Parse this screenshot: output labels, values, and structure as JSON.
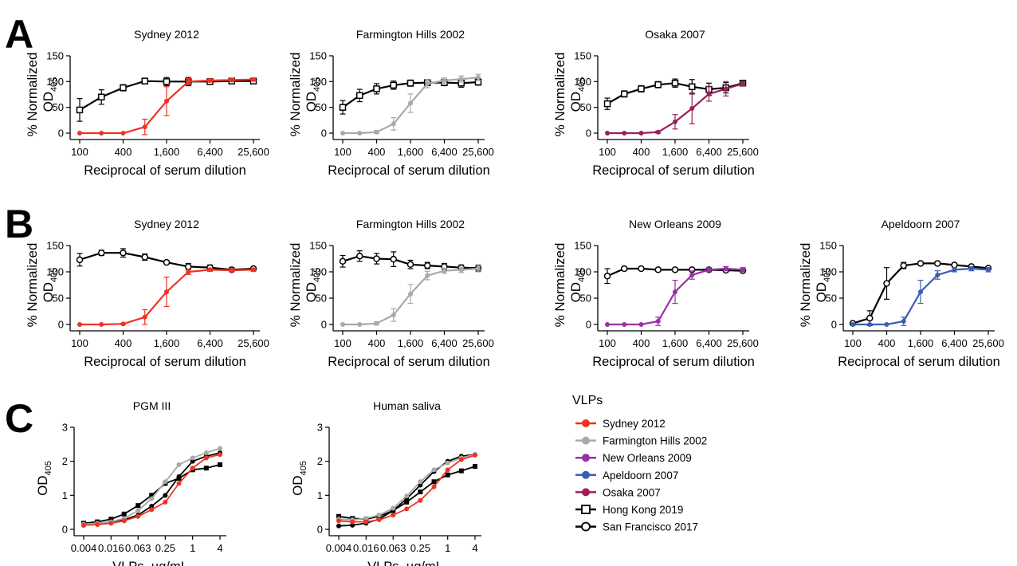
{
  "panel_letters": [
    "A",
    "B",
    "C"
  ],
  "colors": {
    "Sydney 2012": "#ee3324",
    "Farmington Hills 2002": "#a9a9a9",
    "New Orleans 2009": "#9b2fa6",
    "Apeldoorn 2007": "#3d5db3",
    "Osaka 2007": "#9a1f5a",
    "Hong Kong 2019": "#000000",
    "San Francisco 2017": "#000000"
  },
  "axis_text": {
    "od_ylabel_line1": "% Normalized",
    "od_ylabel_line2_main": "OD",
    "od_ylabel_line2_sub": "405",
    "dilution_xlabel": "Reciprocal of serum dilution",
    "vlp_xlabel": "VLPs, µg/mL"
  },
  "legend": {
    "title": "VLPs",
    "items": [
      {
        "label": "Sydney 2012",
        "marker": "filled-circle",
        "color": "#ee3324"
      },
      {
        "label": "Farmington Hills 2002",
        "marker": "filled-circle",
        "color": "#a9a9a9"
      },
      {
        "label": "New Orleans 2009",
        "marker": "filled-circle",
        "color": "#9b2fa6"
      },
      {
        "label": "Apeldoorn 2007",
        "marker": "filled-circle",
        "color": "#3d5db3"
      },
      {
        "label": "Osaka 2007",
        "marker": "filled-circle",
        "color": "#9a1f5a"
      },
      {
        "label": "Hong Kong 2019",
        "marker": "open-square",
        "color": "#000000"
      },
      {
        "label": "San Francisco 2017",
        "marker": "open-circle",
        "color": "#000000"
      }
    ]
  },
  "chart_data": [
    {
      "panel": "A",
      "type": "line",
      "title": "Sydney 2012",
      "xlabel": "Reciprocal of serum dilution",
      "ylabel": "% Normalized OD405",
      "x_scale": "log",
      "x_ticks": [
        "100",
        "400",
        "1,600",
        "6,400",
        "25,600"
      ],
      "y_ticks": [
        "0",
        "50",
        "100",
        "150"
      ],
      "ylim": [
        0,
        150
      ],
      "x": [
        100,
        200,
        400,
        800,
        1600,
        3200,
        6400,
        12800,
        25600
      ],
      "series": [
        {
          "name": "Hong Kong 2019",
          "marker": "open-square",
          "values": [
            45,
            70,
            88,
            101,
            100,
            100,
            100,
            101,
            101
          ],
          "errors": [
            22,
            14,
            6,
            4,
            8,
            8,
            4,
            5,
            5
          ]
        },
        {
          "name": "Sydney 2012",
          "marker": "filled-circle",
          "values": [
            0,
            0,
            0,
            12,
            62,
            100,
            102,
            103,
            104
          ],
          "errors": [
            0,
            0,
            0,
            15,
            28,
            6,
            3,
            3,
            3
          ]
        }
      ]
    },
    {
      "panel": "A",
      "type": "line",
      "title": "Farmington Hills 2002",
      "xlabel": "Reciprocal of serum dilution",
      "ylabel": "% Normalized OD405",
      "x_scale": "log",
      "x_ticks": [
        "100",
        "400",
        "1,600",
        "6,400",
        "25,600"
      ],
      "y_ticks": [
        "0",
        "50",
        "100",
        "150"
      ],
      "ylim": [
        0,
        150
      ],
      "x": [
        100,
        200,
        400,
        800,
        1600,
        3200,
        6400,
        12800,
        25600
      ],
      "series": [
        {
          "name": "Hong Kong 2019",
          "marker": "open-square",
          "values": [
            50,
            73,
            86,
            93,
            97,
            98,
            98,
            97,
            99
          ],
          "errors": [
            13,
            12,
            10,
            8,
            6,
            6,
            6,
            8,
            6
          ]
        },
        {
          "name": "Farmington Hills 2002",
          "marker": "filled-circle",
          "values": [
            0,
            0,
            2,
            18,
            58,
            96,
            102,
            105,
            108
          ],
          "errors": [
            0,
            0,
            3,
            12,
            18,
            8,
            5,
            6,
            6
          ]
        }
      ]
    },
    {
      "panel": "A",
      "type": "line",
      "title": "Osaka 2007",
      "xlabel": "Reciprocal of serum dilution",
      "ylabel": "% Normalized OD405",
      "x_scale": "log",
      "x_ticks": [
        "100",
        "400",
        "1,600",
        "6,400",
        "25,600"
      ],
      "y_ticks": [
        "0",
        "50",
        "100",
        "150"
      ],
      "ylim": [
        0,
        150
      ],
      "x": [
        100,
        200,
        400,
        800,
        1600,
        3200,
        6400,
        12800,
        25600
      ],
      "series": [
        {
          "name": "Hong Kong 2019",
          "marker": "open-square",
          "values": [
            57,
            76,
            86,
            94,
            97,
            90,
            85,
            88,
            97
          ],
          "errors": [
            11,
            6,
            6,
            6,
            8,
            14,
            12,
            10,
            5
          ]
        },
        {
          "name": "Osaka 2007",
          "marker": "filled-circle",
          "values": [
            0,
            0,
            0,
            2,
            22,
            48,
            76,
            86,
            96
          ],
          "errors": [
            0,
            0,
            0,
            2,
            14,
            30,
            14,
            14,
            4
          ]
        }
      ]
    },
    {
      "panel": "B",
      "type": "line",
      "title": "Sydney 2012",
      "xlabel": "Reciprocal of serum dilution",
      "ylabel": "% Normalized OD405",
      "x_scale": "log",
      "x_ticks": [
        "100",
        "400",
        "1,600",
        "6,400",
        "25,600"
      ],
      "y_ticks": [
        "0",
        "50",
        "100",
        "150"
      ],
      "ylim": [
        0,
        150
      ],
      "x": [
        100,
        200,
        400,
        800,
        1600,
        3200,
        6400,
        12800,
        25600
      ],
      "series": [
        {
          "name": "San Francisco 2017",
          "marker": "open-circle",
          "values": [
            123,
            136,
            136,
            128,
            118,
            110,
            108,
            104,
            106
          ],
          "errors": [
            12,
            5,
            8,
            6,
            3,
            6,
            5,
            4,
            3
          ]
        },
        {
          "name": "Sydney 2012",
          "marker": "filled-circle",
          "values": [
            0,
            0,
            1,
            14,
            62,
            100,
            104,
            103,
            104
          ],
          "errors": [
            0,
            0,
            1,
            14,
            28,
            5,
            3,
            3,
            3
          ]
        }
      ]
    },
    {
      "panel": "B",
      "type": "line",
      "title": "Farmington Hills 2002",
      "xlabel": "Reciprocal of serum dilution",
      "ylabel": "% Normalized OD405",
      "x_scale": "log",
      "x_ticks": [
        "100",
        "400",
        "1,600",
        "6,400",
        "25,600"
      ],
      "y_ticks": [
        "0",
        "50",
        "100",
        "150"
      ],
      "ylim": [
        0,
        150
      ],
      "x": [
        100,
        200,
        400,
        800,
        1600,
        3200,
        6400,
        12800,
        25600
      ],
      "series": [
        {
          "name": "San Francisco 2017",
          "marker": "open-circle",
          "values": [
            120,
            130,
            125,
            124,
            114,
            112,
            110,
            108,
            107
          ],
          "errors": [
            11,
            10,
            10,
            14,
            8,
            6,
            6,
            5,
            6
          ]
        },
        {
          "name": "Farmington Hills 2002",
          "marker": "filled-circle",
          "values": [
            0,
            0,
            2,
            18,
            58,
            93,
            102,
            104,
            106
          ],
          "errors": [
            0,
            0,
            3,
            12,
            18,
            8,
            5,
            5,
            6
          ]
        }
      ]
    },
    {
      "panel": "B",
      "type": "line",
      "title": "New Orleans 2009",
      "xlabel": "Reciprocal of serum dilution",
      "ylabel": "% Normalized OD405",
      "x_scale": "log",
      "x_ticks": [
        "100",
        "400",
        "1,600",
        "6,400",
        "25,600"
      ],
      "y_ticks": [
        "0",
        "50",
        "100",
        "150"
      ],
      "ylim": [
        0,
        150
      ],
      "x": [
        100,
        200,
        400,
        800,
        1600,
        3200,
        6400,
        12800,
        25600
      ],
      "series": [
        {
          "name": "San Francisco 2017",
          "marker": "open-circle",
          "values": [
            92,
            106,
            106,
            104,
            104,
            104,
            104,
            103,
            102
          ],
          "errors": [
            14,
            3,
            3,
            3,
            3,
            3,
            3,
            3,
            3
          ]
        },
        {
          "name": "New Orleans 2009",
          "marker": "filled-circle",
          "values": [
            0,
            0,
            0,
            6,
            62,
            94,
            104,
            106,
            104
          ],
          "errors": [
            0,
            0,
            0,
            8,
            22,
            8,
            4,
            4,
            4
          ]
        }
      ]
    },
    {
      "panel": "B",
      "type": "line",
      "title": "Apeldoorn 2007",
      "xlabel": "Reciprocal of serum dilution",
      "ylabel": "% Normalized OD405",
      "x_scale": "log",
      "x_ticks": [
        "100",
        "400",
        "1,600",
        "6,400",
        "25,600"
      ],
      "y_ticks": [
        "0",
        "50",
        "100",
        "150"
      ],
      "ylim": [
        0,
        150
      ],
      "x": [
        100,
        200,
        400,
        800,
        1600,
        3200,
        6400,
        12800,
        25600
      ],
      "series": [
        {
          "name": "San Francisco 2017",
          "marker": "open-circle",
          "values": [
            2,
            12,
            78,
            112,
            116,
            116,
            113,
            110,
            107
          ],
          "errors": [
            2,
            14,
            30,
            6,
            3,
            3,
            3,
            3,
            3
          ]
        },
        {
          "name": "Apeldoorn 2007",
          "marker": "filled-circle",
          "values": [
            0,
            0,
            0,
            6,
            62,
            94,
            104,
            106,
            104
          ],
          "errors": [
            0,
            0,
            0,
            8,
            22,
            8,
            4,
            4,
            4
          ]
        }
      ]
    },
    {
      "panel": "C",
      "type": "line",
      "title": "PGM III",
      "xlabel": "VLPs, µg/mL",
      "ylabel": "OD405",
      "x_scale": "log",
      "x_ticks": [
        "0.004",
        "0.016",
        "0.063",
        "0.25",
        "1",
        "4"
      ],
      "y_ticks": [
        "0",
        "1",
        "2",
        "3"
      ],
      "ylim": [
        0,
        3
      ],
      "x": [
        0.004,
        0.008,
        0.016,
        0.031,
        0.063,
        0.125,
        0.25,
        0.5,
        1,
        2,
        4
      ],
      "series": [
        {
          "name": "Hong Kong 2019",
          "marker": "filled-square",
          "values": [
            0.18,
            0.22,
            0.3,
            0.45,
            0.7,
            1.0,
            1.35,
            1.5,
            1.75,
            1.8,
            1.9
          ]
        },
        {
          "name": "San Francisco 2017",
          "marker": "filled-circle",
          "values": [
            0.12,
            0.15,
            0.2,
            0.28,
            0.42,
            0.68,
            1.0,
            1.55,
            2.0,
            2.15,
            2.25
          ]
        },
        {
          "name": "Farmington Hills 2002",
          "marker": "filled-circle",
          "values": [
            0.15,
            0.18,
            0.22,
            0.32,
            0.55,
            0.9,
            1.4,
            1.9,
            2.1,
            2.25,
            2.38
          ]
        },
        {
          "name": "Sydney 2012",
          "marker": "filled-circle",
          "values": [
            0.12,
            0.14,
            0.18,
            0.25,
            0.38,
            0.58,
            0.8,
            1.35,
            1.8,
            2.1,
            2.2
          ]
        }
      ]
    },
    {
      "panel": "C",
      "type": "line",
      "title": "Human saliva",
      "xlabel": "VLPs, µg/mL",
      "ylabel": "OD405",
      "x_scale": "log",
      "x_ticks": [
        "0.004",
        "0.016",
        "0.063",
        "0.25",
        "1",
        "4"
      ],
      "y_ticks": [
        "0",
        "1",
        "2",
        "3"
      ],
      "ylim": [
        0,
        3
      ],
      "x": [
        0.004,
        0.008,
        0.016,
        0.031,
        0.063,
        0.125,
        0.25,
        0.5,
        1,
        2,
        4
      ],
      "series": [
        {
          "name": "Hong Kong 2019",
          "marker": "filled-square",
          "values": [
            0.38,
            0.32,
            0.3,
            0.38,
            0.55,
            0.8,
            1.1,
            1.4,
            1.6,
            1.72,
            1.85
          ]
        },
        {
          "name": "San Francisco 2017",
          "marker": "filled-circle",
          "values": [
            0.1,
            0.12,
            0.18,
            0.3,
            0.55,
            0.9,
            1.3,
            1.7,
            2.0,
            2.15,
            2.2
          ]
        },
        {
          "name": "Farmington Hills 2002",
          "marker": "filled-circle",
          "values": [
            0.3,
            0.28,
            0.32,
            0.42,
            0.62,
            0.98,
            1.4,
            1.75,
            1.95,
            2.1,
            2.2
          ]
        },
        {
          "name": "Sydney 2012",
          "marker": "filled-circle",
          "values": [
            0.25,
            0.22,
            0.22,
            0.28,
            0.42,
            0.6,
            0.85,
            1.25,
            1.75,
            2.05,
            2.18
          ]
        }
      ]
    }
  ]
}
